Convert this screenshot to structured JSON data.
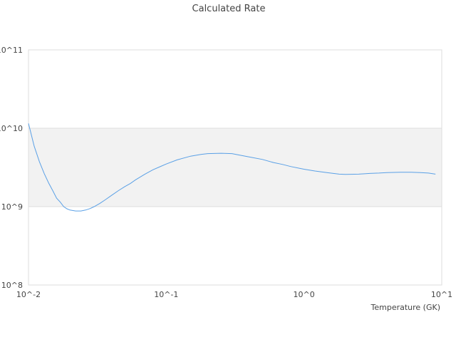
{
  "chart_data": {
    "type": "line",
    "title": "Calculated Rate",
    "xlabel": "Temperature (GK)",
    "ylabel": "",
    "xscale": "log",
    "yscale": "log",
    "xlim": [
      0.01,
      10
    ],
    "ylim": [
      100000000,
      100000000000
    ],
    "x_tick_labels": [
      "10^-2",
      "10^-1",
      "10^0",
      "10^1"
    ],
    "y_tick_labels": [
      "10^8",
      "10^9",
      "10^10",
      "10^11"
    ],
    "shaded_band": [
      1000000000,
      10000000000
    ],
    "colors": {
      "line": "#5aa0e6",
      "band": "#f2f2f2",
      "frame": "#dddddd"
    },
    "series": [
      {
        "x": [
          0.01,
          0.011,
          0.012,
          0.013,
          0.014,
          0.015,
          0.016,
          0.017,
          0.018,
          0.019,
          0.02,
          0.022,
          0.024,
          0.026,
          0.028,
          0.03,
          0.033,
          0.036,
          0.04,
          0.045,
          0.05,
          0.055,
          0.06,
          0.07,
          0.08,
          0.09,
          0.1,
          0.12,
          0.15,
          0.18,
          0.2,
          0.25,
          0.3,
          0.35,
          0.4,
          0.5,
          0.6,
          0.7,
          0.8,
          1.0,
          1.2,
          1.5,
          1.8,
          2.0,
          2.5,
          3.0,
          3.5,
          4.0,
          5.0,
          6.0,
          7.0,
          8.0,
          9.0
        ],
        "y": [
          11500000000,
          5900000000,
          3750000000,
          2650000000,
          2000000000,
          1600000000,
          1280000000,
          1140000000,
          1000000000,
          940000000,
          905000000,
          880000000,
          880000000,
          905000000,
          945000000,
          1000000000,
          1100000000,
          1220000000,
          1390000000,
          1600000000,
          1800000000,
          1980000000,
          2200000000,
          2600000000,
          2950000000,
          3230000000,
          3500000000,
          3950000000,
          4400000000,
          4650000000,
          4750000000,
          4800000000,
          4750000000,
          4500000000,
          4300000000,
          4000000000,
          3650000000,
          3450000000,
          3250000000,
          3000000000,
          2850000000,
          2700000000,
          2600000000,
          2580000000,
          2600000000,
          2650000000,
          2680000000,
          2720000000,
          2750000000,
          2750000000,
          2720000000,
          2680000000,
          2600000000
        ]
      }
    ]
  }
}
